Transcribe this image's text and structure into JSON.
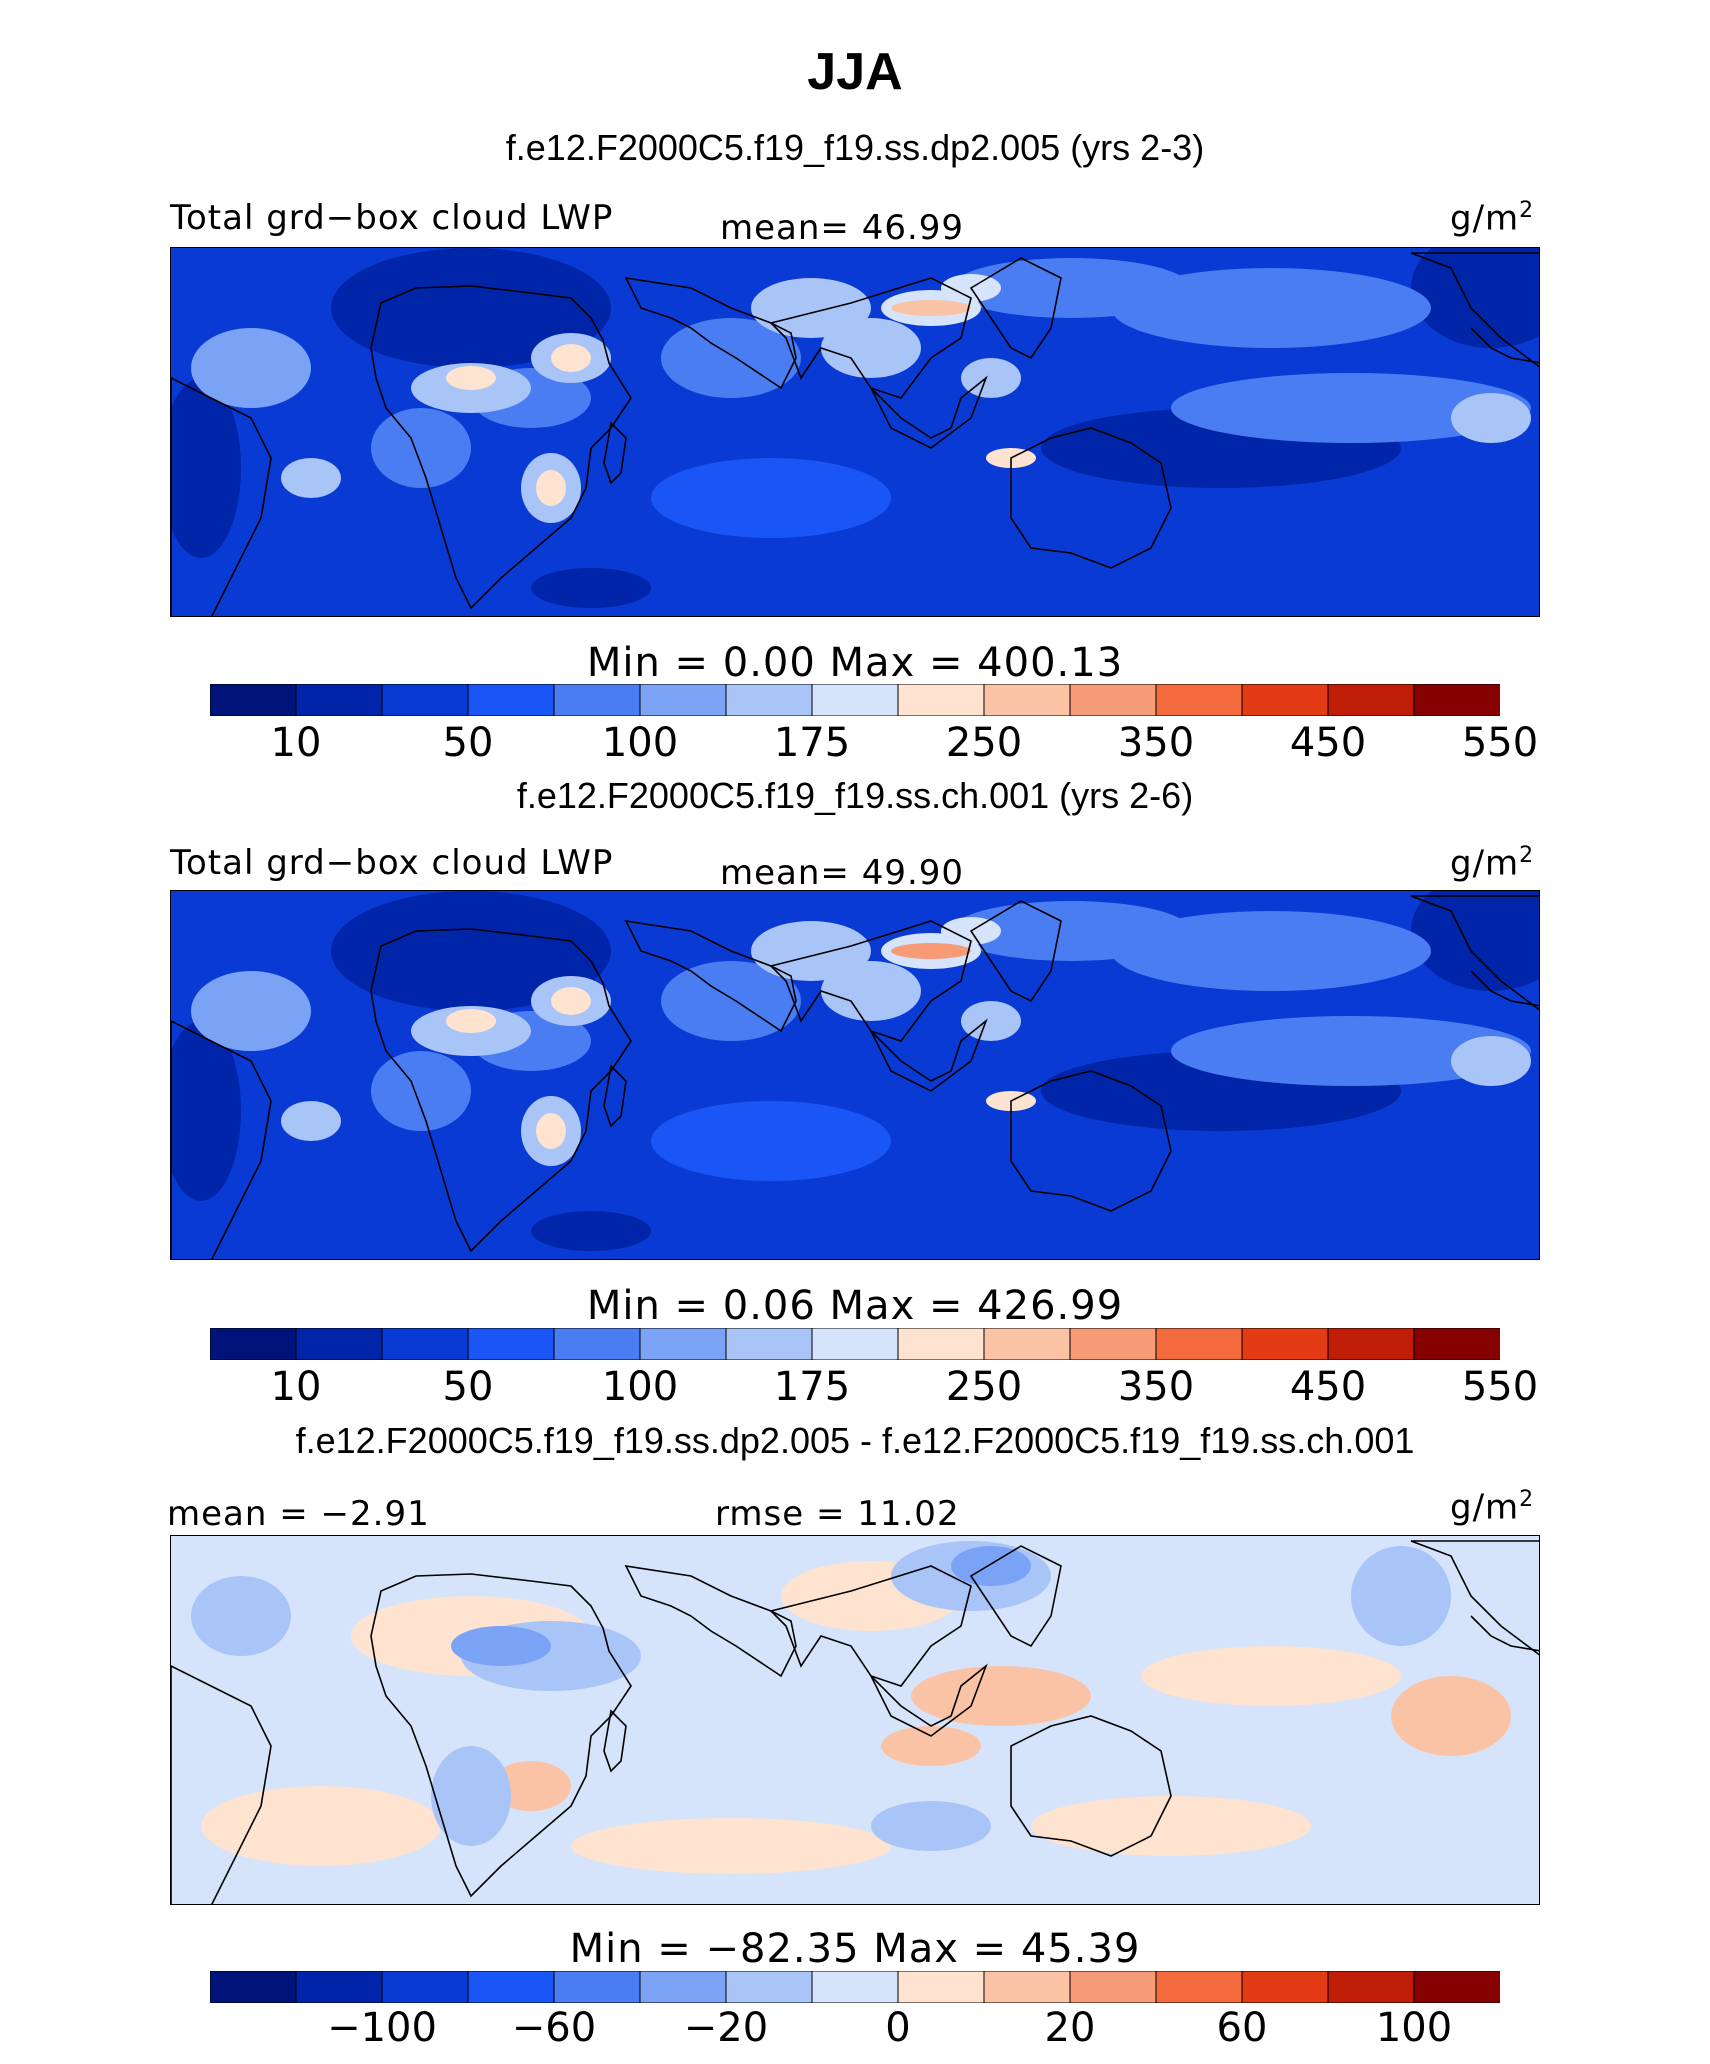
{
  "title": "JJA",
  "panels": [
    {
      "case_title": "f.e12.F2000C5.f19_f19.ss.dp2.005 (yrs 2-3)",
      "left_label": "Total grd−box cloud LWP",
      "center_label": "mean=  46.99",
      "unit": "g/m",
      "unit_sup": "2",
      "minmax": "Min  =     0.00  Max  =  400.13",
      "colorbar": {
        "labels": [
          "10",
          "50",
          "100",
          "175",
          "250",
          "350",
          "450",
          "550"
        ]
      },
      "field_intensity": "moderate"
    },
    {
      "case_title": "f.e12.F2000C5.f19_f19.ss.ch.001 (yrs 2-6)",
      "left_label": "Total grd−box cloud LWP",
      "center_label": "mean=  49.90",
      "unit": "g/m",
      "unit_sup": "2",
      "minmax": "Min  =     0.06  Max  =  426.99",
      "colorbar": {
        "labels": [
          "10",
          "50",
          "100",
          "175",
          "250",
          "350",
          "450",
          "550"
        ]
      },
      "field_intensity": "moderate"
    },
    {
      "case_title": "f.e12.F2000C5.f19_f19.ss.dp2.005 - f.e12.F2000C5.f19_f19.ss.ch.001",
      "left_label": "mean =  −2.91",
      "center_label": "rmse  =   11.02",
      "unit": "g/m",
      "unit_sup": "2",
      "minmax": "Min  =  −82.35  Max  =   45.39",
      "colorbar": {
        "labels": [
          "−100",
          "−60",
          "−20",
          "0",
          "20",
          "60",
          "100"
        ]
      },
      "field_intensity": "difference"
    }
  ],
  "colors": {
    "levels": [
      "#00137a",
      "#0025a8",
      "#0a3ad4",
      "#1a55f5",
      "#4a7cf2",
      "#7aa2f5",
      "#a9c4f7",
      "#d5e4fa",
      "#fde3d0",
      "#fbc3a6",
      "#f79a76",
      "#f36a3e",
      "#e23a12",
      "#c01d06",
      "#850000"
    ],
    "coastline": "#000000"
  }
}
